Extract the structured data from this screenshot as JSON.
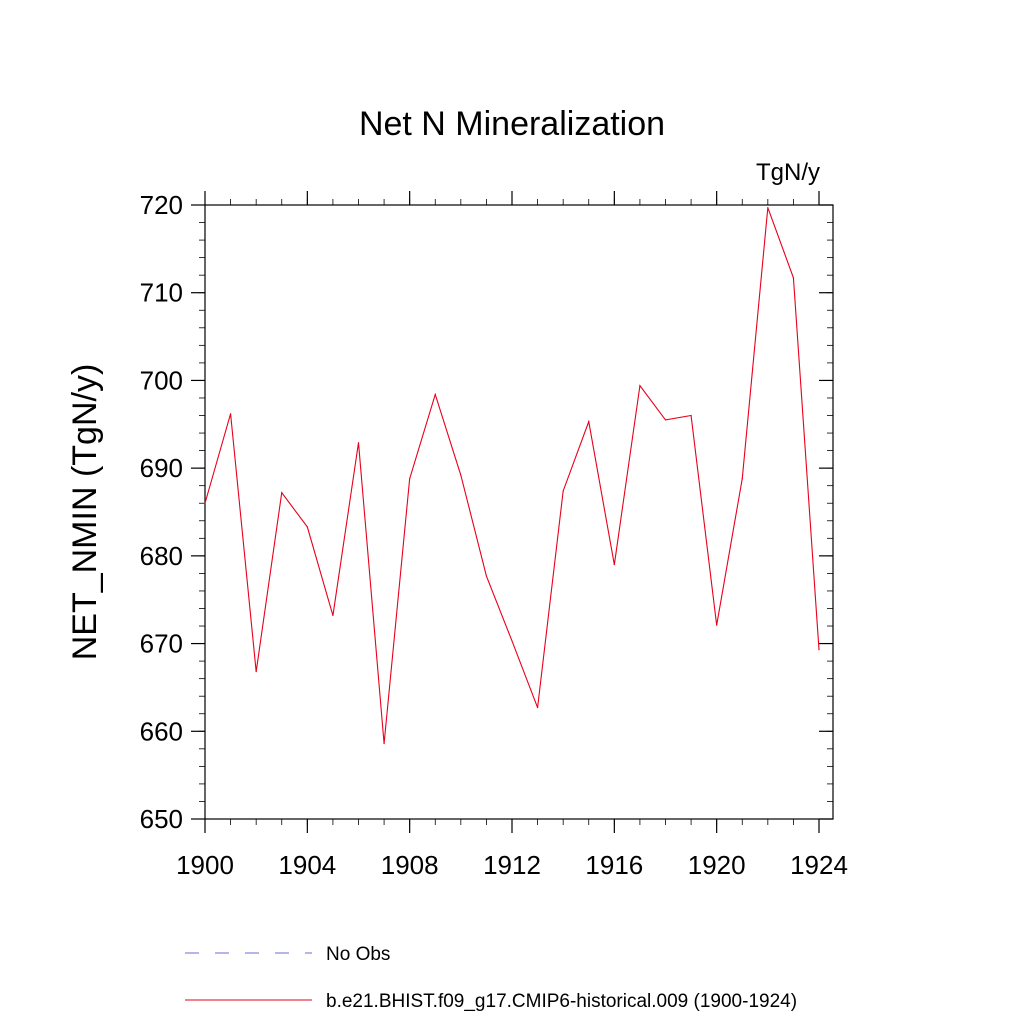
{
  "chart_data": {
    "type": "line",
    "title": "Net N Mineralization",
    "units_label": "TgN/y",
    "ylabel": "NET_NMIN  (TgN/y)",
    "xlabel": "",
    "xlim": [
      1900,
      1924
    ],
    "ylim": [
      650,
      720
    ],
    "xticks": [
      1900,
      1904,
      1908,
      1912,
      1916,
      1920,
      1924
    ],
    "yticks": [
      650,
      660,
      670,
      680,
      690,
      700,
      710,
      720
    ],
    "grid": false,
    "legend_position": "bottom",
    "series": [
      {
        "name": "b.e21.BHIST.f09_g17.CMIP6-historical.009 (1900-1924)",
        "color": "#e8001c",
        "line_style": "solid",
        "x": [
          1900,
          1901,
          1902,
          1903,
          1904,
          1905,
          1906,
          1907,
          1908,
          1909,
          1910,
          1911,
          1912,
          1913,
          1914,
          1915,
          1916,
          1917,
          1918,
          1919,
          1920,
          1921,
          1922,
          1923,
          1924
        ],
        "y": [
          686.0,
          696.2,
          666.8,
          687.2,
          683.3,
          673.2,
          692.9,
          658.6,
          688.8,
          698.4,
          689.2,
          677.7,
          670.3,
          662.7,
          687.4,
          695.3,
          679.0,
          699.4,
          695.5,
          696.0,
          672.1,
          688.8,
          719.7,
          711.7,
          669.3
        ]
      }
    ],
    "legend": [
      {
        "label": "No Obs",
        "color": "#6b6bd6",
        "line_style": "dashed"
      },
      {
        "label": "b.e21.BHIST.f09_g17.CMIP6-historical.009 (1900-1924)",
        "color": "#e8001c",
        "line_style": "solid"
      }
    ]
  }
}
